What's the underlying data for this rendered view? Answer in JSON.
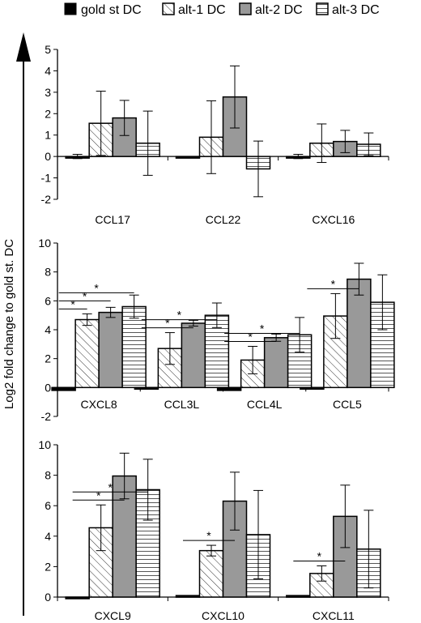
{
  "legend": {
    "placement": "top",
    "entries": [
      {
        "label": "gold st DC",
        "pattern": "solid-black"
      },
      {
        "label": "alt-1 DC",
        "pattern": "diagonal-hatch"
      },
      {
        "label": "alt-2 DC",
        "pattern": "solid-gray"
      },
      {
        "label": "alt-3 DC",
        "pattern": "horizontal-hatch"
      }
    ]
  },
  "ylabel": "Log2 fold change to gold st. DC",
  "colors": {
    "gold": "#000000",
    "alt2": "#999999",
    "outline": "#000000"
  },
  "chart_data": [
    {
      "type": "bar",
      "ylim": [
        -2,
        5
      ],
      "yticks": [
        "-2",
        "-1",
        "0",
        "1",
        "2",
        "3",
        "4",
        "5"
      ],
      "categories": [
        "CCL17",
        "CCL22",
        "CXCL16"
      ],
      "series": [
        {
          "name": "gold st DC",
          "values": [
            0,
            0,
            0
          ],
          "errors": [
            0.1,
            0,
            0.1
          ]
        },
        {
          "name": "alt-1 DC",
          "values": [
            1.55,
            0.9,
            0.62
          ],
          "errors": [
            1.5,
            1.7,
            0.9
          ]
        },
        {
          "name": "alt-2 DC",
          "values": [
            1.8,
            2.78,
            0.7
          ],
          "errors": [
            0.82,
            1.45,
            0.52
          ]
        },
        {
          "name": "alt-3 DC",
          "values": [
            0.62,
            -0.58,
            0.57
          ],
          "errors": [
            1.5,
            1.3,
            0.53
          ]
        }
      ],
      "significance": []
    },
    {
      "type": "bar",
      "ylim": [
        -2,
        10
      ],
      "yticks": [
        "-2",
        "0",
        "2",
        "4",
        "6",
        "8",
        "10"
      ],
      "categories": [
        "CXCL8",
        "CCL3L",
        "CCL4L",
        "CCL5"
      ],
      "series": [
        {
          "name": "gold st DC",
          "values": [
            -0.2,
            -0.1,
            -0.2,
            0
          ],
          "errors": [
            0,
            0,
            0,
            0
          ]
        },
        {
          "name": "alt-1 DC",
          "values": [
            4.7,
            2.7,
            1.9,
            4.95
          ],
          "errors": [
            0.4,
            1.1,
            0.95,
            1.55
          ]
        },
        {
          "name": "alt-2 DC",
          "values": [
            5.2,
            4.45,
            3.45,
            7.5
          ],
          "errors": [
            0.35,
            0.2,
            0.25,
            1.1
          ]
        },
        {
          "name": "alt-3 DC",
          "values": [
            5.6,
            5.0,
            3.65,
            5.9
          ],
          "errors": [
            0.8,
            0.85,
            1.2,
            1.9
          ]
        }
      ],
      "significance": [
        {
          "group": 0,
          "from": 0,
          "to": 1,
          "mark": "*"
        },
        {
          "group": 0,
          "from": 0,
          "to": 2,
          "mark": "*"
        },
        {
          "group": 0,
          "from": 0,
          "to": 3,
          "mark": "*"
        },
        {
          "group": 1,
          "from": 0,
          "to": 2,
          "mark": "*"
        },
        {
          "group": 1,
          "from": 0,
          "to": 3,
          "mark": "*"
        },
        {
          "group": 2,
          "from": 0,
          "to": 2,
          "mark": "*"
        },
        {
          "group": 2,
          "from": 0,
          "to": 3,
          "mark": "*"
        },
        {
          "group": 3,
          "from": 0,
          "to": 2,
          "mark": "*"
        }
      ]
    },
    {
      "type": "bar",
      "ylim": [
        0,
        10
      ],
      "yticks": [
        "0",
        "2",
        "4",
        "6",
        "8",
        "10"
      ],
      "categories": [
        "CXCL9",
        "CXCL10",
        "CXCL11"
      ],
      "series": [
        {
          "name": "gold st DC",
          "values": [
            0,
            0.1,
            0.1
          ],
          "errors": [
            0,
            0,
            0
          ]
        },
        {
          "name": "alt-1 DC",
          "values": [
            4.55,
            3.05,
            1.55
          ],
          "errors": [
            1.5,
            0.35,
            0.5
          ]
        },
        {
          "name": "alt-2 DC",
          "values": [
            7.95,
            6.3,
            5.3
          ],
          "errors": [
            1.5,
            1.9,
            2.05
          ]
        },
        {
          "name": "alt-3 DC",
          "values": [
            7.05,
            4.1,
            3.15
          ],
          "errors": [
            2.0,
            2.9,
            2.55
          ]
        }
      ],
      "significance": [
        {
          "group": 0,
          "from": 0,
          "to": 2,
          "mark": "*"
        },
        {
          "group": 0,
          "from": 0,
          "to": 3,
          "mark": "*"
        },
        {
          "group": 1,
          "from": 0,
          "to": 2,
          "mark": "*"
        },
        {
          "group": 2,
          "from": 0,
          "to": 2,
          "mark": "*"
        }
      ]
    }
  ]
}
